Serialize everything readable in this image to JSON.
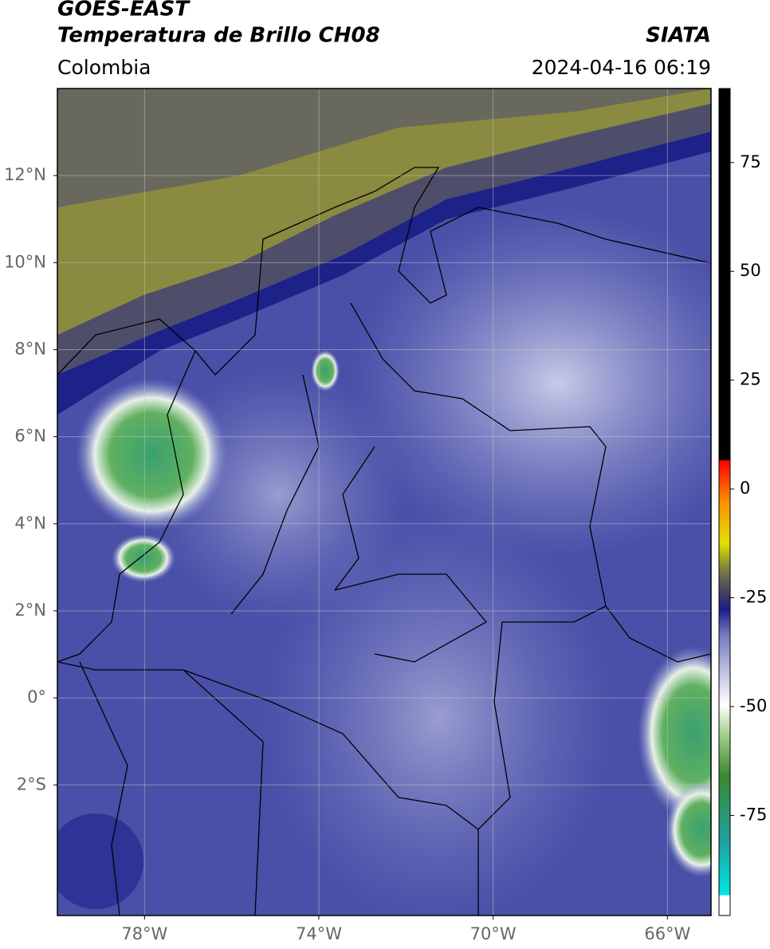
{
  "header": {
    "satellite": "GOES-EAST",
    "product": "Temperatura de Brillo CH08",
    "source": "SIATA",
    "region": "Colombia",
    "datetime": "2024-04-16 06:19"
  },
  "map": {
    "xlim": [
      -80,
      -65
    ],
    "ylim": [
      -5,
      14
    ],
    "xticks": [
      {
        "value": -78,
        "label": "78°W"
      },
      {
        "value": -74,
        "label": "74°W"
      },
      {
        "value": -70,
        "label": "70°W"
      },
      {
        "value": -66,
        "label": "66°W"
      }
    ],
    "yticks": [
      {
        "value": 12,
        "label": "12°N"
      },
      {
        "value": 10,
        "label": "10°N"
      },
      {
        "value": 8,
        "label": "8°N"
      },
      {
        "value": 6,
        "label": "6°N"
      },
      {
        "value": 4,
        "label": "4°N"
      },
      {
        "value": 2,
        "label": "2°N"
      },
      {
        "value": 0,
        "label": "0°"
      },
      {
        "value": -2,
        "label": "2°S"
      }
    ],
    "grid": true
  },
  "colorbar": {
    "lim": [
      -98,
      92
    ],
    "ticks": [
      -75,
      -50,
      -25,
      0,
      25,
      50,
      75
    ]
  }
}
